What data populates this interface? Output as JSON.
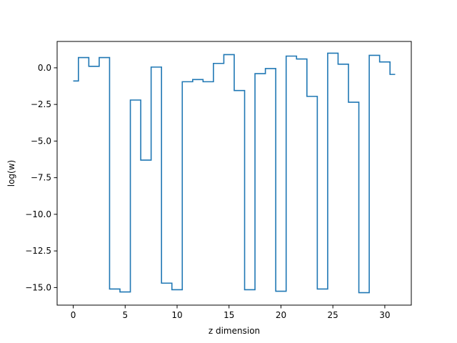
{
  "chart_data": {
    "type": "line",
    "step": "mid",
    "xlabel": "z dimension",
    "ylabel": "log(w)",
    "xlim": [
      -1.55,
      32.55
    ],
    "ylim": [
      -16.2,
      1.8
    ],
    "xticks": [
      0,
      5,
      10,
      15,
      20,
      25,
      30
    ],
    "xtick_labels": [
      "0",
      "5",
      "10",
      "15",
      "20",
      "25",
      "30"
    ],
    "yticks": [
      0.0,
      -2.5,
      -5.0,
      -7.5,
      -10.0,
      -12.5,
      -15.0
    ],
    "ytick_labels": [
      "0.0",
      "−2.5",
      "−5.0",
      "−7.5",
      "−10.0",
      "−12.5",
      "−15.0"
    ],
    "grid": false,
    "series": [
      {
        "color": "#1f77b4",
        "x": [
          0,
          1,
          2,
          3,
          4,
          5,
          6,
          7,
          8,
          9,
          10,
          11,
          12,
          13,
          14,
          15,
          16,
          17,
          18,
          19,
          20,
          21,
          22,
          23,
          24,
          25,
          26,
          27,
          28,
          29,
          30,
          31
        ],
        "y": [
          -0.9,
          0.7,
          0.1,
          0.7,
          -15.1,
          -15.3,
          -2.2,
          -6.3,
          0.05,
          -14.7,
          -15.15,
          -0.95,
          -0.8,
          -0.95,
          0.3,
          0.9,
          -1.55,
          -15.15,
          -0.4,
          -0.05,
          -15.25,
          0.8,
          0.6,
          -1.95,
          -15.1,
          1.0,
          0.25,
          -2.35,
          -15.35,
          0.85,
          0.4,
          -0.45
        ]
      }
    ]
  }
}
